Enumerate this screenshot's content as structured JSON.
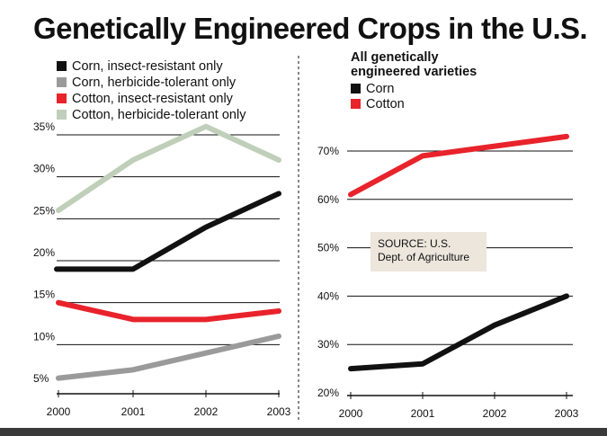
{
  "title": "Genetically Engineered Crops in the U.S.",
  "colors": {
    "black_series": "#111111",
    "gray_series": "#9a9a9a",
    "red_series": "#e8232b",
    "green_series": "#bfcfb9",
    "source_box": "#ece6dc",
    "bottom_bar": "#3a3a3a"
  },
  "chart_data": [
    {
      "type": "line",
      "title": "",
      "x": [
        2000,
        2001,
        2002,
        2003
      ],
      "categories": [
        "2000",
        "2001",
        "2002",
        "2003"
      ],
      "ylim": [
        5,
        35
      ],
      "yticks": [
        "35%",
        "30%",
        "25%",
        "20%",
        "15%",
        "10%",
        "5%"
      ],
      "xlabel": "",
      "ylabel": "",
      "legend": "top",
      "series": [
        {
          "name": "Corn, insect-resistant only",
          "color": "#111111",
          "values": [
            19,
            19,
            24,
            28
          ]
        },
        {
          "name": "Corn, herbicide-tolerant only",
          "color": "#9a9a9a",
          "values": [
            6,
            7,
            9,
            11
          ]
        },
        {
          "name": "Cotton, insect-resistant only",
          "color": "#e8232b",
          "values": [
            15,
            13,
            13,
            14
          ]
        },
        {
          "name": "Cotton, herbicide-tolerant only",
          "color": "#bfcfb9",
          "values": [
            26,
            32,
            36,
            32
          ]
        }
      ]
    },
    {
      "type": "line",
      "title": "All genetically engineered varieties",
      "title_lines": [
        "All genetically",
        "engineered varieties"
      ],
      "x": [
        2000,
        2001,
        2002,
        2003
      ],
      "categories": [
        "2000",
        "2001",
        "2002",
        "2003"
      ],
      "ylim": [
        20,
        73
      ],
      "yticks": [
        "70%",
        "60%",
        "50%",
        "40%",
        "30%",
        "20%"
      ],
      "xlabel": "",
      "ylabel": "",
      "legend": "top-left",
      "series": [
        {
          "name": "Corn",
          "color": "#111111",
          "values": [
            25,
            26,
            34,
            40
          ]
        },
        {
          "name": "Cotton",
          "color": "#e8232b",
          "values": [
            61,
            69,
            71,
            73
          ]
        }
      ],
      "annotation": [
        "SOURCE: U.S.",
        "Dept. of Agriculture"
      ]
    }
  ]
}
